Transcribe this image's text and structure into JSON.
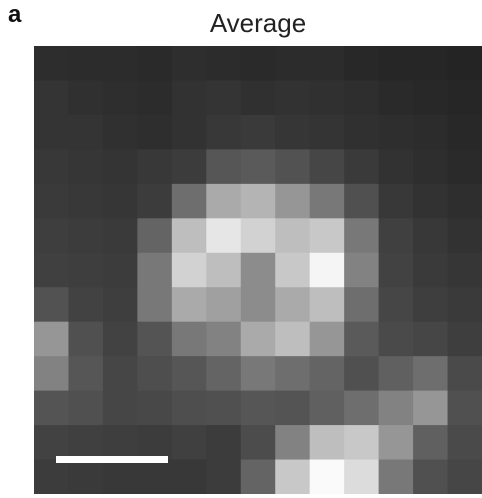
{
  "panel": {
    "letter": "a",
    "title": "Average"
  },
  "image": {
    "grid_size": 13,
    "description_icon": "micrograph-image",
    "intensity": [
      [
        45,
        44,
        44,
        42,
        46,
        44,
        42,
        44,
        44,
        40,
        38,
        38,
        36
      ],
      [
        52,
        48,
        46,
        44,
        50,
        52,
        48,
        50,
        48,
        46,
        42,
        40,
        38
      ],
      [
        52,
        52,
        48,
        46,
        50,
        56,
        58,
        54,
        52,
        48,
        46,
        44,
        40
      ],
      [
        56,
        54,
        52,
        56,
        60,
        86,
        90,
        82,
        70,
        58,
        50,
        46,
        42
      ],
      [
        58,
        56,
        54,
        60,
        110,
        170,
        180,
        150,
        120,
        80,
        56,
        50,
        46
      ],
      [
        62,
        60,
        58,
        100,
        190,
        230,
        210,
        190,
        200,
        120,
        64,
        56,
        50
      ],
      [
        64,
        62,
        60,
        120,
        210,
        190,
        140,
        200,
        245,
        130,
        66,
        58,
        54
      ],
      [
        82,
        66,
        62,
        120,
        170,
        160,
        140,
        170,
        190,
        110,
        70,
        62,
        58
      ],
      [
        150,
        80,
        66,
        84,
        120,
        130,
        170,
        190,
        150,
        90,
        74,
        70,
        62
      ],
      [
        130,
        86,
        70,
        78,
        86,
        100,
        120,
        110,
        100,
        80,
        96,
        110,
        74
      ],
      [
        84,
        80,
        70,
        72,
        78,
        80,
        86,
        84,
        96,
        110,
        130,
        150,
        80
      ],
      [
        66,
        64,
        62,
        60,
        64,
        60,
        76,
        130,
        190,
        200,
        150,
        96,
        74
      ],
      [
        60,
        58,
        56,
        56,
        56,
        60,
        100,
        200,
        250,
        220,
        120,
        80,
        70
      ]
    ]
  },
  "scale_bar": {
    "color": "#ffffff",
    "relative_length": 0.25
  }
}
